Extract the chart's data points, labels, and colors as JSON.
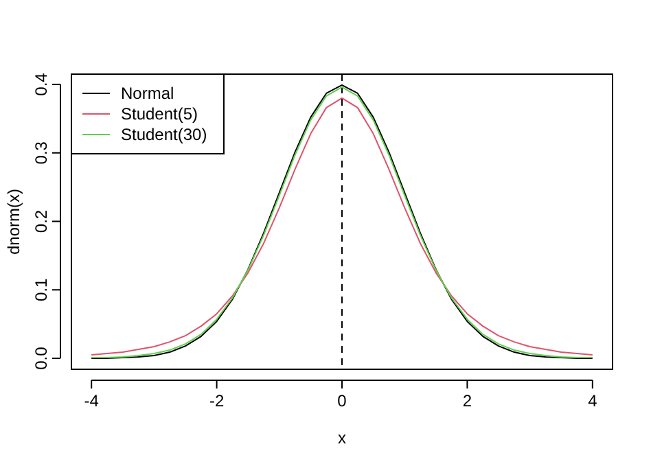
{
  "chart_data": {
    "type": "line",
    "xlabel": "x",
    "ylabel": "dnorm(x)",
    "x": [
      -4,
      -3.75,
      -3.5,
      -3.25,
      -3,
      -2.75,
      -2.5,
      -2.25,
      -2,
      -1.75,
      -1.5,
      -1.25,
      -1,
      -0.75,
      -0.5,
      -0.25,
      0,
      0.25,
      0.5,
      0.75,
      1,
      1.25,
      1.5,
      1.75,
      2,
      2.25,
      2.5,
      2.75,
      3,
      3.25,
      3.5,
      3.75,
      4
    ],
    "series": [
      {
        "name": "Normal",
        "color": "#000000",
        "values": [
          0.0,
          0.0,
          0.001,
          0.002,
          0.004,
          0.009,
          0.018,
          0.032,
          0.054,
          0.086,
          0.13,
          0.183,
          0.242,
          0.301,
          0.352,
          0.387,
          0.399,
          0.387,
          0.352,
          0.301,
          0.242,
          0.183,
          0.13,
          0.086,
          0.054,
          0.032,
          0.018,
          0.009,
          0.004,
          0.002,
          0.001,
          0.0,
          0.0
        ]
      },
      {
        "name": "Student(5)",
        "color": "#df536b",
        "values": [
          0.005,
          0.007,
          0.009,
          0.013,
          0.017,
          0.024,
          0.033,
          0.047,
          0.065,
          0.091,
          0.125,
          0.168,
          0.22,
          0.276,
          0.328,
          0.366,
          0.38,
          0.366,
          0.328,
          0.276,
          0.22,
          0.168,
          0.125,
          0.091,
          0.065,
          0.047,
          0.033,
          0.024,
          0.017,
          0.013,
          0.009,
          0.007,
          0.005
        ]
      },
      {
        "name": "Student(30)",
        "color": "#61d04f",
        "values": [
          0.001,
          0.001,
          0.002,
          0.004,
          0.007,
          0.012,
          0.021,
          0.035,
          0.057,
          0.088,
          0.129,
          0.18,
          0.238,
          0.297,
          0.348,
          0.383,
          0.396,
          0.383,
          0.348,
          0.297,
          0.238,
          0.18,
          0.129,
          0.088,
          0.057,
          0.035,
          0.021,
          0.012,
          0.007,
          0.004,
          0.002,
          0.001,
          0.001
        ]
      }
    ],
    "xlim": [
      -4.32,
      4.32
    ],
    "ylim": [
      -0.016,
      0.415
    ],
    "xticks": [
      -4,
      -2,
      0,
      2,
      4
    ],
    "yticks": [
      {
        "value": 0,
        "label": "0.0"
      },
      {
        "value": 0.1,
        "label": "0.1"
      },
      {
        "value": 0.2,
        "label": "0.2"
      },
      {
        "value": 0.3,
        "label": "0.3"
      },
      {
        "value": 0.4,
        "label": "0.4"
      }
    ],
    "ref_lines": [
      {
        "axis": "x",
        "value": 0,
        "color": "#000000",
        "line_style": "dashed"
      }
    ],
    "legend": "top left",
    "marker": "none",
    "line_style": "solid",
    "grid": false
  }
}
